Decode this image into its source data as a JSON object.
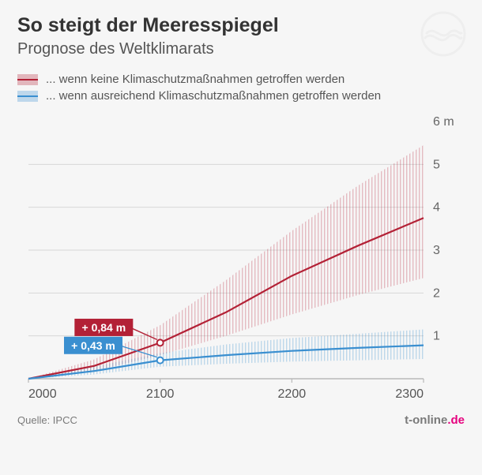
{
  "title": "So steigt der Meeresspiegel",
  "subtitle": "Prognose des Weltklimarats",
  "legend": {
    "high": {
      "label": "... wenn keine Klimaschutzmaßnahmen getroffen werden",
      "color": "#b32136",
      "band_color": "#b32136"
    },
    "low": {
      "label": "... wenn ausreichend Klimaschutzmaßnahmen getroffen werden",
      "color": "#3a8fd0",
      "band_color": "#3a8fd0"
    }
  },
  "chart": {
    "type": "line-with-band",
    "x": {
      "min": 2000,
      "max": 2300,
      "ticks": [
        2000,
        2100,
        2200,
        2300
      ],
      "fontsize": 16
    },
    "y": {
      "min": 0,
      "max": 6,
      "ticks": [
        1,
        2,
        3,
        4,
        5
      ],
      "top_label": "6 m",
      "fontsize": 16
    },
    "grid_color": "#d7d7d7",
    "axis_color": "#b9b9b9",
    "background": "#f6f6f6",
    "series": {
      "high": {
        "color": "#b32136",
        "line_width": 2.2,
        "band_opacity": 0.28,
        "center": [
          {
            "x": 2000,
            "y": 0.0
          },
          {
            "x": 2050,
            "y": 0.3
          },
          {
            "x": 2100,
            "y": 0.84
          },
          {
            "x": 2150,
            "y": 1.55
          },
          {
            "x": 2200,
            "y": 2.4
          },
          {
            "x": 2250,
            "y": 3.1
          },
          {
            "x": 2300,
            "y": 3.75
          }
        ],
        "upper": [
          {
            "x": 2000,
            "y": 0.0
          },
          {
            "x": 2050,
            "y": 0.45
          },
          {
            "x": 2100,
            "y": 1.25
          },
          {
            "x": 2150,
            "y": 2.3
          },
          {
            "x": 2200,
            "y": 3.45
          },
          {
            "x": 2250,
            "y": 4.5
          },
          {
            "x": 2300,
            "y": 5.45
          }
        ],
        "lower": [
          {
            "x": 2000,
            "y": 0.0
          },
          {
            "x": 2050,
            "y": 0.18
          },
          {
            "x": 2100,
            "y": 0.55
          },
          {
            "x": 2150,
            "y": 1.0
          },
          {
            "x": 2200,
            "y": 1.5
          },
          {
            "x": 2250,
            "y": 1.95
          },
          {
            "x": 2300,
            "y": 2.35
          }
        ],
        "callout": {
          "x": 2100,
          "y": 0.84,
          "label": "+ 0,84 m",
          "box_fill": "#b32136",
          "box_text": "#ffffff",
          "box_x": 2035,
          "box_y": 1.4
        }
      },
      "low": {
        "color": "#3a8fd0",
        "line_width": 2.2,
        "band_opacity": 0.3,
        "center": [
          {
            "x": 2000,
            "y": 0.0
          },
          {
            "x": 2050,
            "y": 0.18
          },
          {
            "x": 2100,
            "y": 0.43
          },
          {
            "x": 2150,
            "y": 0.55
          },
          {
            "x": 2200,
            "y": 0.65
          },
          {
            "x": 2250,
            "y": 0.72
          },
          {
            "x": 2300,
            "y": 0.78
          }
        ],
        "upper": [
          {
            "x": 2000,
            "y": 0.0
          },
          {
            "x": 2050,
            "y": 0.28
          },
          {
            "x": 2100,
            "y": 0.6
          },
          {
            "x": 2150,
            "y": 0.8
          },
          {
            "x": 2200,
            "y": 0.95
          },
          {
            "x": 2250,
            "y": 1.05
          },
          {
            "x": 2300,
            "y": 1.15
          }
        ],
        "lower": [
          {
            "x": 2000,
            "y": 0.0
          },
          {
            "x": 2050,
            "y": 0.1
          },
          {
            "x": 2100,
            "y": 0.28
          },
          {
            "x": 2150,
            "y": 0.35
          },
          {
            "x": 2200,
            "y": 0.4
          },
          {
            "x": 2250,
            "y": 0.43
          },
          {
            "x": 2300,
            "y": 0.46
          }
        ],
        "callout": {
          "x": 2100,
          "y": 0.43,
          "label": "+ 0,43 m",
          "box_fill": "#3a8fd0",
          "box_text": "#ffffff",
          "box_x": 2027,
          "box_y": 0.98
        }
      }
    }
  },
  "footer": {
    "source_label": "Quelle: IPCC",
    "brand_plain": "t-online",
    "brand_accent": ".de"
  },
  "colors": {
    "title": "#333333",
    "subtitle": "#555555",
    "footer_text": "#7a7a7a",
    "brand_accent": "#e6007e",
    "logo_gray": "#cfcfcf"
  }
}
